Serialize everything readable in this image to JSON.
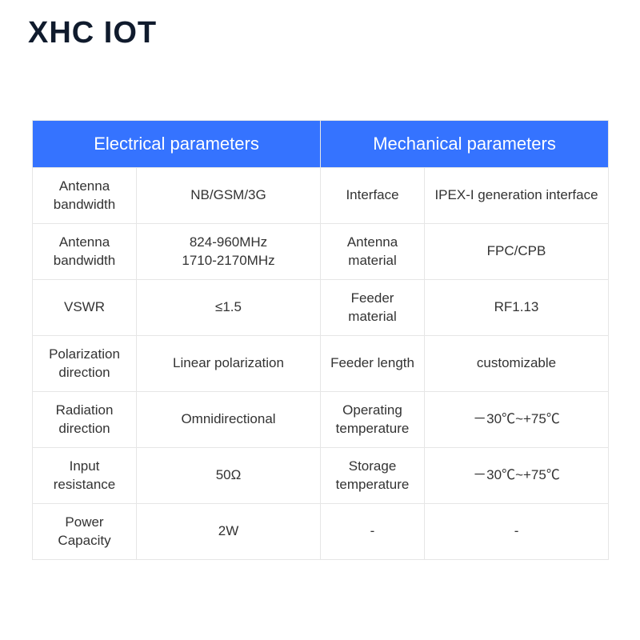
{
  "logo": {
    "text": "XHC IOT",
    "color": "#101b2d",
    "fontsize": 38
  },
  "table": {
    "border_color": "#e6e6e6",
    "border_width": 1,
    "header": {
      "bg_color": "#3573ff",
      "text_color": "#ffffff",
      "fontsize": 22,
      "electrical_label": "Electrical parameters",
      "mechanical_label": "Mechanical parameters"
    },
    "body": {
      "bg_color": "#ffffff",
      "text_color": "#333333",
      "fontsize": 17
    },
    "columns": [
      "col-a",
      "col-b",
      "col-c",
      "col-d"
    ],
    "rows": [
      {
        "e_param": "Antenna\nbandwidth",
        "e_value": "NB/GSM/3G",
        "m_param": "Interface",
        "m_value": "IPEX-I generation interface"
      },
      {
        "e_param": "Antenna\nbandwidth",
        "e_value": "824-960MHz\n1710-2170MHz",
        "m_param": "Antenna\nmaterial",
        "m_value": "FPC/CPB"
      },
      {
        "e_param": "VSWR",
        "e_value": "≤1.5",
        "m_param": "Feeder material",
        "m_value": "RF1.13"
      },
      {
        "e_param": "Polarization\ndirection",
        "e_value": "Linear polarization",
        "m_param": "Feeder length",
        "m_value": "customizable"
      },
      {
        "e_param": "Radiation\ndirection",
        "e_value": "Omnidirectional",
        "m_param": "Operating\ntemperature",
        "m_value": "－30℃~+75℃"
      },
      {
        "e_param": "Input resistance",
        "e_value": "50Ω",
        "m_param": "Storage\ntemperature",
        "m_value": "－30℃~+75℃"
      },
      {
        "e_param": "Power Capacity",
        "e_value": "2W",
        "m_param": "-",
        "m_value": "-"
      }
    ]
  }
}
